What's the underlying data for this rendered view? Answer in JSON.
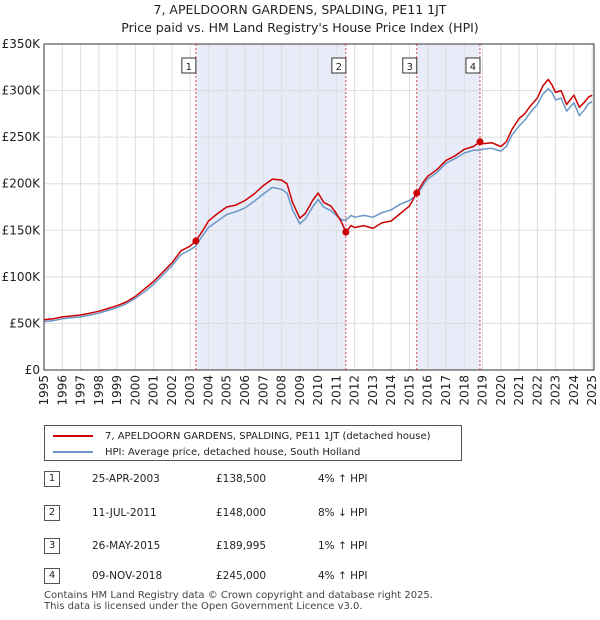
{
  "colors": {
    "price_line": "#cc0000",
    "hpi_line": "#6a96c8",
    "shade": "#e8ecf8",
    "grid": "#dddddd",
    "marker": "#cc0000"
  },
  "chart_data": {
    "type": "line",
    "title": "7, APELDOORN GARDENS, SPALDING, PE11 1JT",
    "subtitle": "Price paid vs. HM Land Registry's House Price Index (HPI)",
    "xlim": [
      1995,
      2025.1
    ],
    "ylim": [
      0,
      350000
    ],
    "x_ticks": [
      1995,
      1996,
      1997,
      1998,
      1999,
      2000,
      2001,
      2002,
      2003,
      2004,
      2005,
      2006,
      2007,
      2008,
      2009,
      2010,
      2011,
      2012,
      2013,
      2014,
      2015,
      2016,
      2017,
      2018,
      2019,
      2020,
      2021,
      2022,
      2023,
      2024,
      2025
    ],
    "y_ticks": [
      0,
      50000,
      100000,
      150000,
      200000,
      250000,
      300000,
      350000
    ],
    "y_tick_labels": [
      "£0",
      "£50K",
      "£100K",
      "£150K",
      "£200K",
      "£250K",
      "£300K",
      "£350K"
    ],
    "grid": true,
    "series": [
      {
        "name": "7, APELDOORN GARDENS, SPALDING, PE11 1JT (detached house)",
        "x": [
          1995,
          1995.5,
          1996,
          1996.5,
          1997,
          1997.5,
          1998,
          1998.5,
          1999,
          1999.5,
          2000,
          2000.5,
          2001,
          2001.5,
          2002,
          2002.5,
          2003,
          2003.31,
          2003.7,
          2004,
          2004.5,
          2005,
          2005.5,
          2006,
          2006.5,
          2007,
          2007.5,
          2008,
          2008.3,
          2008.6,
          2009,
          2009.3,
          2009.7,
          2010,
          2010.3,
          2010.7,
          2011,
          2011.3,
          2011.52,
          2011.8,
          2012,
          2012.5,
          2013,
          2013.5,
          2014,
          2014.5,
          2015,
          2015.4,
          2015.8,
          2016,
          2016.5,
          2017,
          2017.5,
          2018,
          2018.5,
          2018.86,
          2019,
          2019.5,
          2020,
          2020.3,
          2020.6,
          2021,
          2021.3,
          2021.6,
          2022,
          2022.3,
          2022.6,
          2022.8,
          2023,
          2023.3,
          2023.6,
          2024,
          2024.3,
          2024.6,
          2024.8,
          2025
        ],
        "y": [
          54000,
          55000,
          57000,
          58000,
          59000,
          61000,
          63000,
          66000,
          69000,
          73000,
          79000,
          87000,
          95000,
          105000,
          115000,
          128000,
          133000,
          138500,
          150000,
          160000,
          168000,
          175000,
          177000,
          182000,
          189000,
          198000,
          205000,
          204000,
          200000,
          180000,
          163000,
          168000,
          182000,
          190000,
          180000,
          176000,
          168000,
          158000,
          148000,
          155000,
          153000,
          155000,
          152000,
          158000,
          160000,
          168000,
          176000,
          189995,
          203000,
          208000,
          215000,
          225000,
          230000,
          237000,
          240000,
          245000,
          243000,
          244000,
          240000,
          245000,
          258000,
          270000,
          275000,
          283000,
          292000,
          305000,
          312000,
          306000,
          298000,
          300000,
          285000,
          295000,
          282000,
          288000,
          293000,
          295000
        ]
      },
      {
        "name": "HPI: Average price, detached house, South Holland",
        "x": [
          1995,
          1995.5,
          1996,
          1996.5,
          1997,
          1997.5,
          1998,
          1998.5,
          1999,
          1999.5,
          2000,
          2000.5,
          2001,
          2001.5,
          2002,
          2002.5,
          2003,
          2003.31,
          2003.7,
          2004,
          2004.5,
          2005,
          2005.5,
          2006,
          2006.5,
          2007,
          2007.5,
          2008,
          2008.3,
          2008.6,
          2009,
          2009.3,
          2009.7,
          2010,
          2010.3,
          2010.7,
          2011,
          2011.3,
          2011.52,
          2011.8,
          2012,
          2012.5,
          2013,
          2013.5,
          2014,
          2014.5,
          2015,
          2015.4,
          2015.8,
          2016,
          2016.5,
          2017,
          2017.5,
          2018,
          2018.5,
          2018.86,
          2019,
          2019.5,
          2020,
          2020.3,
          2020.6,
          2021,
          2021.3,
          2021.6,
          2022,
          2022.3,
          2022.6,
          2022.8,
          2023,
          2023.3,
          2023.6,
          2024,
          2024.3,
          2024.6,
          2024.8,
          2025
        ],
        "y": [
          52000,
          53000,
          55000,
          56000,
          57000,
          59000,
          61000,
          64000,
          67000,
          71000,
          77000,
          84000,
          92000,
          102000,
          112000,
          124000,
          129000,
          133000,
          145000,
          153000,
          160000,
          167000,
          170000,
          174000,
          181000,
          189000,
          196000,
          194000,
          190000,
          172000,
          157000,
          162000,
          175000,
          183000,
          175000,
          171000,
          166000,
          161000,
          161000,
          166000,
          164000,
          166000,
          164000,
          169000,
          172000,
          178000,
          182000,
          188000,
          200000,
          205000,
          212000,
          222000,
          227000,
          233000,
          236000,
          236000,
          237000,
          238000,
          235000,
          240000,
          252000,
          262000,
          268000,
          276000,
          285000,
          296000,
          302000,
          298000,
          290000,
          292000,
          278000,
          287000,
          273000,
          280000,
          286000,
          288000
        ]
      }
    ],
    "sale_markers": [
      {
        "label": "1",
        "x": 2003.31,
        "y": 138500
      },
      {
        "label": "2",
        "x": 2011.52,
        "y": 148000
      },
      {
        "label": "3",
        "x": 2015.4,
        "y": 189995
      },
      {
        "label": "4",
        "x": 2018.86,
        "y": 245000
      }
    ],
    "shaded_ranges": [
      [
        2003.31,
        2011.52
      ],
      [
        2015.4,
        2018.86
      ]
    ]
  },
  "legend": {
    "property_label": "7, APELDOORN GARDENS, SPALDING, PE11 1JT (detached house)",
    "hpi_label": "HPI: Average price, detached house, South Holland"
  },
  "sales": [
    {
      "num": "1",
      "date": "25-APR-2003",
      "price": "£138,500",
      "hpi": "4% ↑ HPI"
    },
    {
      "num": "2",
      "date": "11-JUL-2011",
      "price": "£148,000",
      "hpi": "8% ↓ HPI"
    },
    {
      "num": "3",
      "date": "26-MAY-2015",
      "price": "£189,995",
      "hpi": "1% ↑ HPI"
    },
    {
      "num": "4",
      "date": "09-NOV-2018",
      "price": "£245,000",
      "hpi": "4% ↑ HPI"
    }
  ],
  "footer": {
    "line1": "Contains HM Land Registry data © Crown copyright and database right 2025.",
    "line2": "This data is licensed under the Open Government Licence v3.0."
  }
}
